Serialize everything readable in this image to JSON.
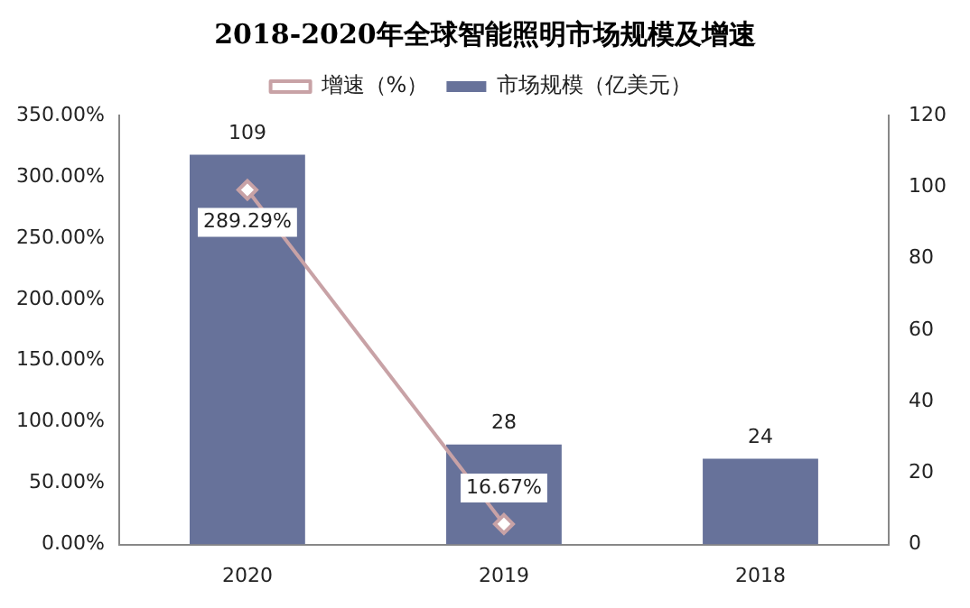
{
  "chart_data": {
    "type": "bar",
    "title": "2018-2020年全球智能照明市场规模及增速",
    "categories": [
      "2020",
      "2019",
      "2018"
    ],
    "series": [
      {
        "name": "增速（%）",
        "type": "line",
        "axis": "y",
        "color": "#c8a2a6",
        "marker": "diamond",
        "values": [
          289.29,
          16.67,
          null
        ],
        "value_labels": [
          "289.29%",
          "16.67%",
          null
        ]
      },
      {
        "name": "市场规模（亿美元）",
        "axis": "y2",
        "color": "#67729a",
        "values": [
          109,
          28,
          24
        ],
        "value_labels": [
          "109",
          "28",
          "24"
        ]
      }
    ],
    "ylim": [
      0,
      350
    ],
    "yticks": [
      {
        "value": 0,
        "label": "0.00%"
      },
      {
        "value": 50,
        "label": "50.00%"
      },
      {
        "value": 100,
        "label": "100.00%"
      },
      {
        "value": 150,
        "label": "150.00%"
      },
      {
        "value": 200,
        "label": "200.00%"
      },
      {
        "value": 250,
        "label": "250.00%"
      },
      {
        "value": 300,
        "label": "300.00%"
      },
      {
        "value": 350,
        "label": "350.00%"
      }
    ],
    "y2lim": [
      0,
      120
    ],
    "y2ticks": [
      0,
      20,
      40,
      60,
      80,
      100,
      120
    ],
    "legend": "top",
    "grid": false
  }
}
